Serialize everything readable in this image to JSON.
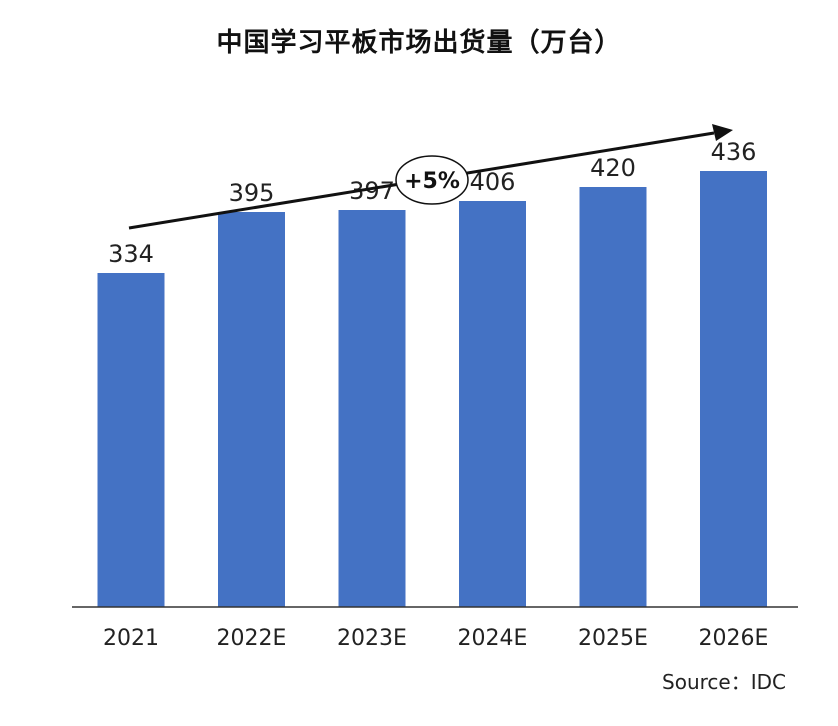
{
  "chart_data": {
    "type": "bar",
    "title": "中国学习平板市场出货量（万台）",
    "categories": [
      "2021",
      "2022E",
      "2023E",
      "2024E",
      "2025E",
      "2026E"
    ],
    "values": [
      334,
      395,
      397,
      406,
      420,
      436
    ],
    "xlabel": "",
    "ylabel": "",
    "ylim": [
      0,
      500
    ],
    "grid": false,
    "bar_color": "#4472C4",
    "annotations": [
      {
        "type": "trend-arrow",
        "label": "+5%"
      }
    ],
    "source": "Source：IDC"
  }
}
